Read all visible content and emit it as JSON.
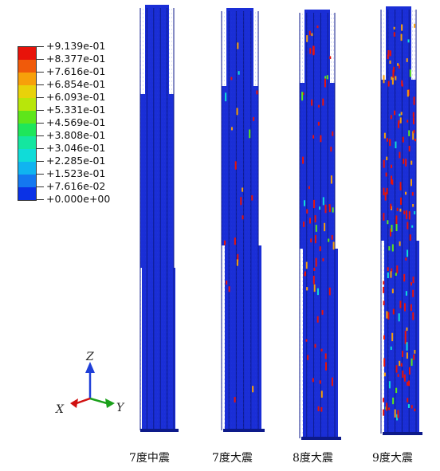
{
  "legend": {
    "labels": [
      "+9.139e-01",
      "+8.377e-01",
      "+7.616e-01",
      "+6.854e-01",
      "+6.093e-01",
      "+5.331e-01",
      "+4.569e-01",
      "+3.808e-01",
      "+3.046e-01",
      "+2.285e-01",
      "+1.523e-01",
      "+7.616e-02",
      "+0.000e+00"
    ],
    "colors": [
      "#e8130a",
      "#f05a0a",
      "#f7a00a",
      "#e8d20a",
      "#b8e60a",
      "#5ee61a",
      "#1ee65a",
      "#14e6a0",
      "#10dcd8",
      "#10b4f0",
      "#1478f0",
      "#0a32e6"
    ]
  },
  "columns": [
    {
      "label": "7度中震"
    },
    {
      "label": "7度大震"
    },
    {
      "label": "8度大震"
    },
    {
      "label": "9度大震"
    }
  ],
  "triad": {
    "z": "Z",
    "x": "X",
    "y": "Y"
  },
  "colors": {
    "base": "#1a2ed6",
    "dark": "#0d1a8a",
    "edge": "#2a40e8"
  }
}
